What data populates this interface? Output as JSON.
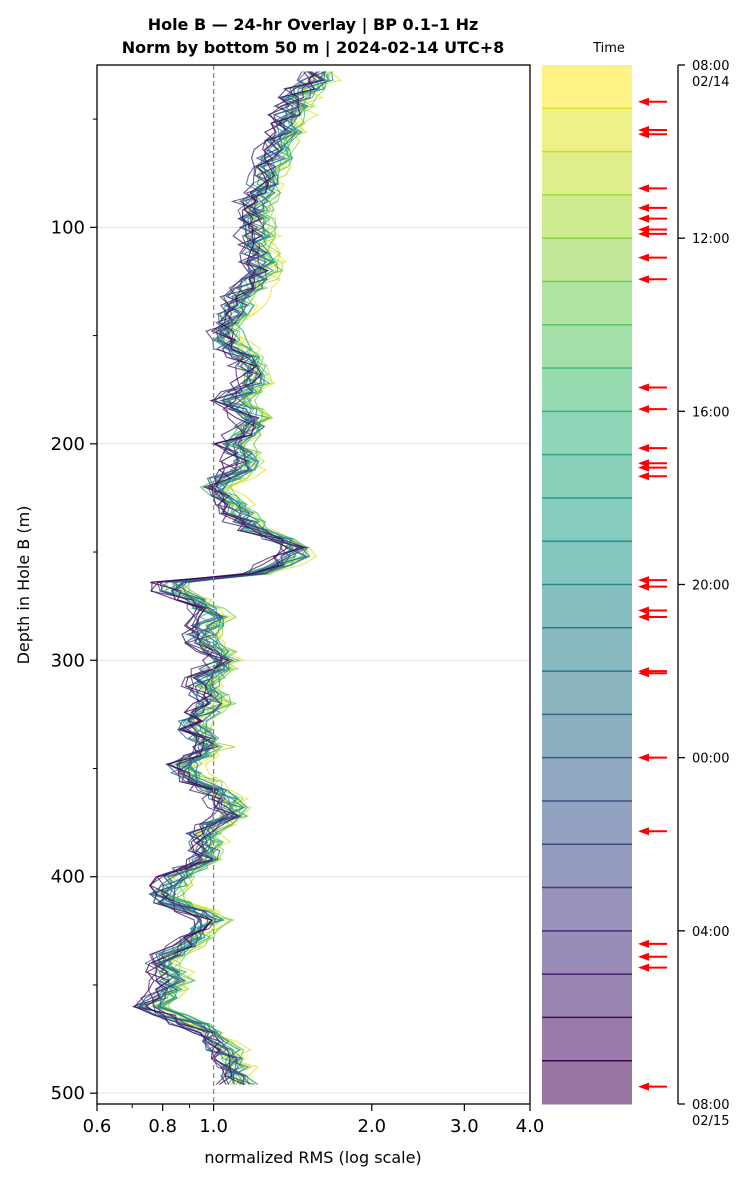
{
  "chart_data": {
    "type": "line",
    "title_line1": "Hole B — 24-hr Overlay  |  BP 0.1–1 Hz",
    "title_line2": "Norm by bottom 50 m  |  2024-02-14 UTC+8",
    "xlabel": "normalized RMS  (log scale)",
    "ylabel": "Depth in Hole B (m)",
    "xscale": "log",
    "xlim": [
      0.6,
      4.0
    ],
    "ylim": [
      505,
      25
    ],
    "x_ticks": [
      "0.6",
      "0.8",
      "1.0",
      "2.0",
      "3.0",
      "4.0"
    ],
    "y_ticks": [
      "100",
      "200",
      "300",
      "400",
      "500"
    ],
    "reference_line_x": 1.0,
    "grid": true,
    "series_count": 24,
    "colormap": "viridis",
    "representative_profile": {
      "depth": [
        25,
        30,
        40,
        50,
        60,
        70,
        80,
        90,
        100,
        110,
        120,
        130,
        140,
        150,
        160,
        170,
        180,
        190,
        200,
        210,
        220,
        230,
        240,
        250,
        260,
        265,
        270,
        280,
        290,
        300,
        310,
        320,
        330,
        340,
        350,
        360,
        370,
        380,
        390,
        400,
        410,
        420,
        430,
        440,
        450,
        460,
        470,
        480,
        490,
        500
      ],
      "value": [
        1.5,
        1.6,
        1.45,
        1.4,
        1.35,
        1.3,
        1.25,
        1.2,
        1.2,
        1.22,
        1.25,
        1.15,
        1.1,
        1.05,
        1.15,
        1.2,
        1.1,
        1.2,
        1.1,
        1.15,
        1.0,
        1.1,
        1.2,
        1.5,
        1.2,
        0.75,
        0.9,
        1.0,
        0.95,
        1.05,
        0.95,
        1.0,
        0.9,
        1.0,
        0.85,
        1.0,
        1.1,
        0.95,
        1.0,
        0.85,
        0.8,
        1.0,
        0.9,
        0.8,
        0.85,
        0.75,
        0.95,
        1.05,
        1.1,
        1.15
      ]
    }
  },
  "colorbar": {
    "title": "Time",
    "ticks": [
      {
        "label": "08:00",
        "sublabel": "02/14"
      },
      {
        "label": "12:00",
        "sublabel": ""
      },
      {
        "label": "16:00",
        "sublabel": ""
      },
      {
        "label": "20:00",
        "sublabel": ""
      },
      {
        "label": "00:00",
        "sublabel": ""
      },
      {
        "label": "04:00",
        "sublabel": ""
      },
      {
        "label": "08:00",
        "sublabel": "02/15"
      }
    ],
    "segments": 24,
    "arrow_color": "#ff0000",
    "arrow_hours": [
      0.85,
      1.5,
      1.6,
      2.85,
      3.3,
      3.55,
      3.8,
      3.9,
      4.45,
      4.95,
      7.45,
      7.95,
      8.85,
      9.2,
      9.3,
      9.5,
      11.9,
      12.05,
      12.6,
      12.75,
      14.0,
      14.05,
      16.0,
      17.7,
      20.3,
      20.6,
      20.85,
      23.6
    ]
  }
}
